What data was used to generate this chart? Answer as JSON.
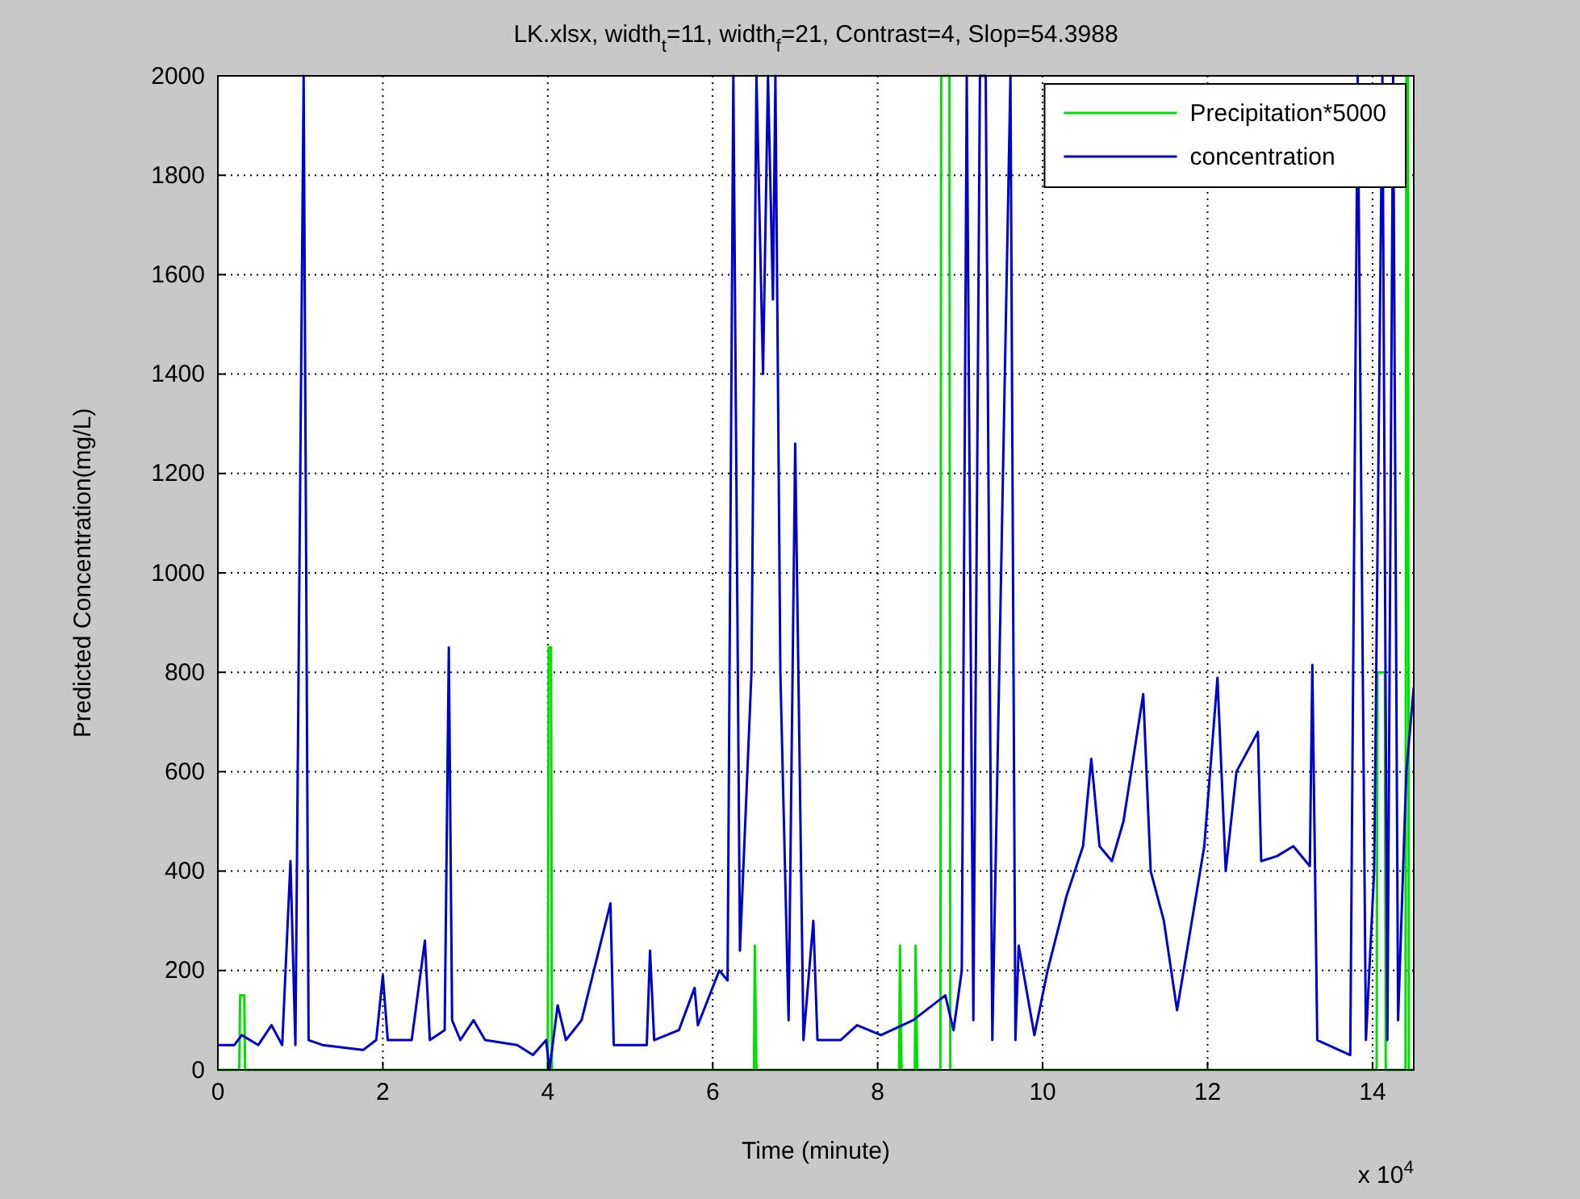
{
  "chart_data": {
    "type": "line",
    "title": "LK.xlsx, width$_{t}$=11, width$_{f}$=21, Contrast=4, Slop=54.3988",
    "xlabel": "Time (minute)",
    "ylabel": "Predicted Concentration(mg/L)",
    "annotations": [
      "x 10$^{4}$"
    ],
    "xlim": [
      0,
      14.5
    ],
    "ylim": [
      0,
      2000
    ],
    "xticks": [
      0,
      2,
      4,
      6,
      8,
      10,
      12,
      14
    ],
    "yticks": [
      0,
      200,
      400,
      600,
      800,
      1000,
      1200,
      1400,
      1600,
      1800,
      2000
    ],
    "grid": true,
    "legend": "top right",
    "line_style": "solid",
    "series": [
      {
        "name": "Precipitation*5000",
        "color": "#00e000",
        "x": [
          0,
          0.26,
          0.27,
          0.32,
          0.33,
          4.0,
          4.01,
          4.04,
          4.05,
          6.5,
          6.51,
          6.53,
          8.26,
          8.27,
          8.29,
          8.45,
          8.46,
          8.48,
          8.76,
          8.77,
          8.87,
          8.88,
          14.05,
          14.06,
          14.15,
          14.16,
          14.4,
          14.41,
          14.43,
          14.44,
          14.5
        ],
        "values": [
          0,
          0,
          150,
          150,
          0,
          0,
          850,
          850,
          0,
          0,
          250,
          0,
          0,
          250,
          0,
          0,
          250,
          0,
          0,
          2000,
          2000,
          0,
          0,
          800,
          800,
          0,
          0,
          2000,
          2000,
          0,
          0
        ]
      },
      {
        "name": "concentration",
        "color": "#0000cc",
        "x": [
          0,
          0.2,
          0.29,
          0.49,
          0.65,
          0.78,
          0.88,
          0.94,
          1.04,
          1.1,
          1.27,
          1.76,
          1.92,
          2.0,
          2.06,
          2.35,
          2.51,
          2.57,
          2.75,
          2.8,
          2.84,
          2.94,
          3.1,
          3.24,
          3.63,
          3.82,
          3.98,
          4.02,
          4.12,
          4.22,
          4.41,
          4.76,
          4.8,
          5.2,
          5.24,
          5.29,
          5.59,
          5.78,
          5.82,
          6.08,
          6.18,
          6.25,
          6.33,
          6.47,
          6.53,
          6.61,
          6.67,
          6.73,
          6.76,
          6.82,
          6.92,
          7.0,
          7.1,
          7.22,
          7.27,
          7.55,
          7.75,
          8.04,
          8.43,
          8.82,
          8.92,
          9.02,
          9.08,
          9.16,
          9.24,
          9.31,
          9.39,
          9.61,
          9.67,
          9.71,
          9.9,
          10.06,
          10.29,
          10.49,
          10.59,
          10.69,
          10.84,
          10.98,
          11.22,
          11.31,
          11.47,
          11.63,
          11.76,
          11.96,
          12.12,
          12.22,
          12.35,
          12.61,
          12.65,
          12.84,
          13.04,
          13.24,
          13.27,
          13.33,
          13.73,
          13.82,
          13.92,
          14.02,
          14.12,
          14.18,
          14.25,
          14.31,
          14.41,
          14.5
        ],
        "values": [
          50,
          50,
          70,
          50,
          90,
          50,
          420,
          50,
          2000,
          60,
          50,
          40,
          60,
          190,
          60,
          60,
          260,
          60,
          80,
          850,
          100,
          60,
          100,
          60,
          50,
          30,
          60,
          0,
          130,
          60,
          100,
          335,
          50,
          50,
          240,
          60,
          80,
          165,
          90,
          200,
          180,
          2000,
          240,
          800,
          2000,
          1400,
          2000,
          1550,
          2000,
          800,
          100,
          1260,
          60,
          300,
          60,
          60,
          90,
          70,
          100,
          150,
          80,
          200,
          2000,
          100,
          2000,
          2000,
          60,
          2000,
          60,
          250,
          70,
          200,
          350,
          450,
          626,
          450,
          420,
          500,
          756,
          400,
          300,
          120,
          250,
          450,
          789,
          400,
          600,
          680,
          420,
          430,
          450,
          410,
          815,
          60,
          30,
          2000,
          60,
          400,
          2000,
          60,
          2000,
          100,
          600,
          770
        ]
      }
    ]
  }
}
